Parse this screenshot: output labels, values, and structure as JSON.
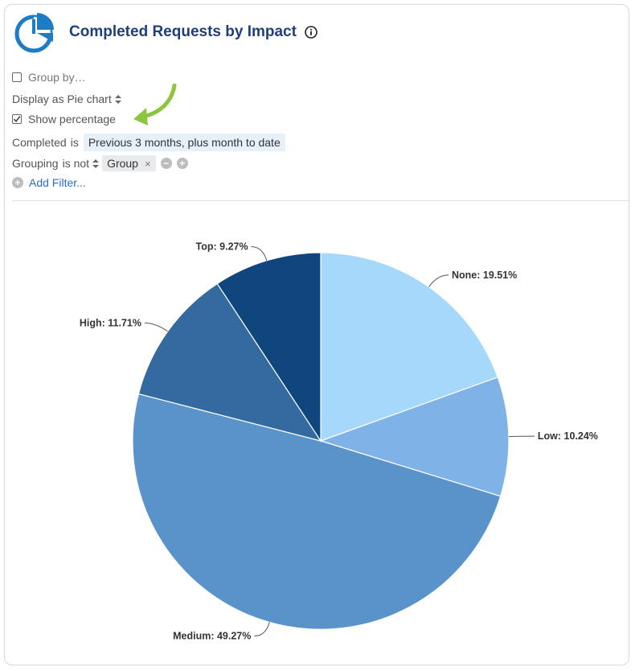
{
  "header": {
    "title": "Completed Requests by Impact"
  },
  "controls": {
    "group_by_label": "Group by…",
    "group_by_checked": false,
    "display_as_label": "Display as Pie chart",
    "show_percentage_label": "Show percentage",
    "show_percentage_checked": true,
    "filter_completed_field": "Completed",
    "filter_completed_op": "is",
    "filter_completed_value": "Previous 3 months, plus month to date",
    "filter_grouping_field": "Grouping",
    "filter_grouping_op": "is not",
    "filter_grouping_value": "Group",
    "add_filter_label": "Add Filter..."
  },
  "colors": {
    "title": "#1f3f7a",
    "arrow": "#8cc63f",
    "link": "#2b6cc4"
  },
  "chart_data": {
    "type": "pie",
    "title": "",
    "slices": [
      {
        "name": "None",
        "value": 19.51,
        "label": "None: 19.51%",
        "color": "#a5d8fb"
      },
      {
        "name": "Low",
        "value": 10.24,
        "label": "Low: 10.24%",
        "color": "#7fb3e8"
      },
      {
        "name": "Medium",
        "value": 49.27,
        "label": "Medium: 49.27%",
        "color": "#5a93c9"
      },
      {
        "name": "High",
        "value": 11.71,
        "label": "High: 11.71%",
        "color": "#336a9f"
      },
      {
        "name": "Top",
        "value": 9.27,
        "label": "Top: 9.27%",
        "color": "#10467e"
      }
    ],
    "start": "12 o'clock",
    "direction": "clockwise",
    "labels": "outside with leader lines"
  }
}
